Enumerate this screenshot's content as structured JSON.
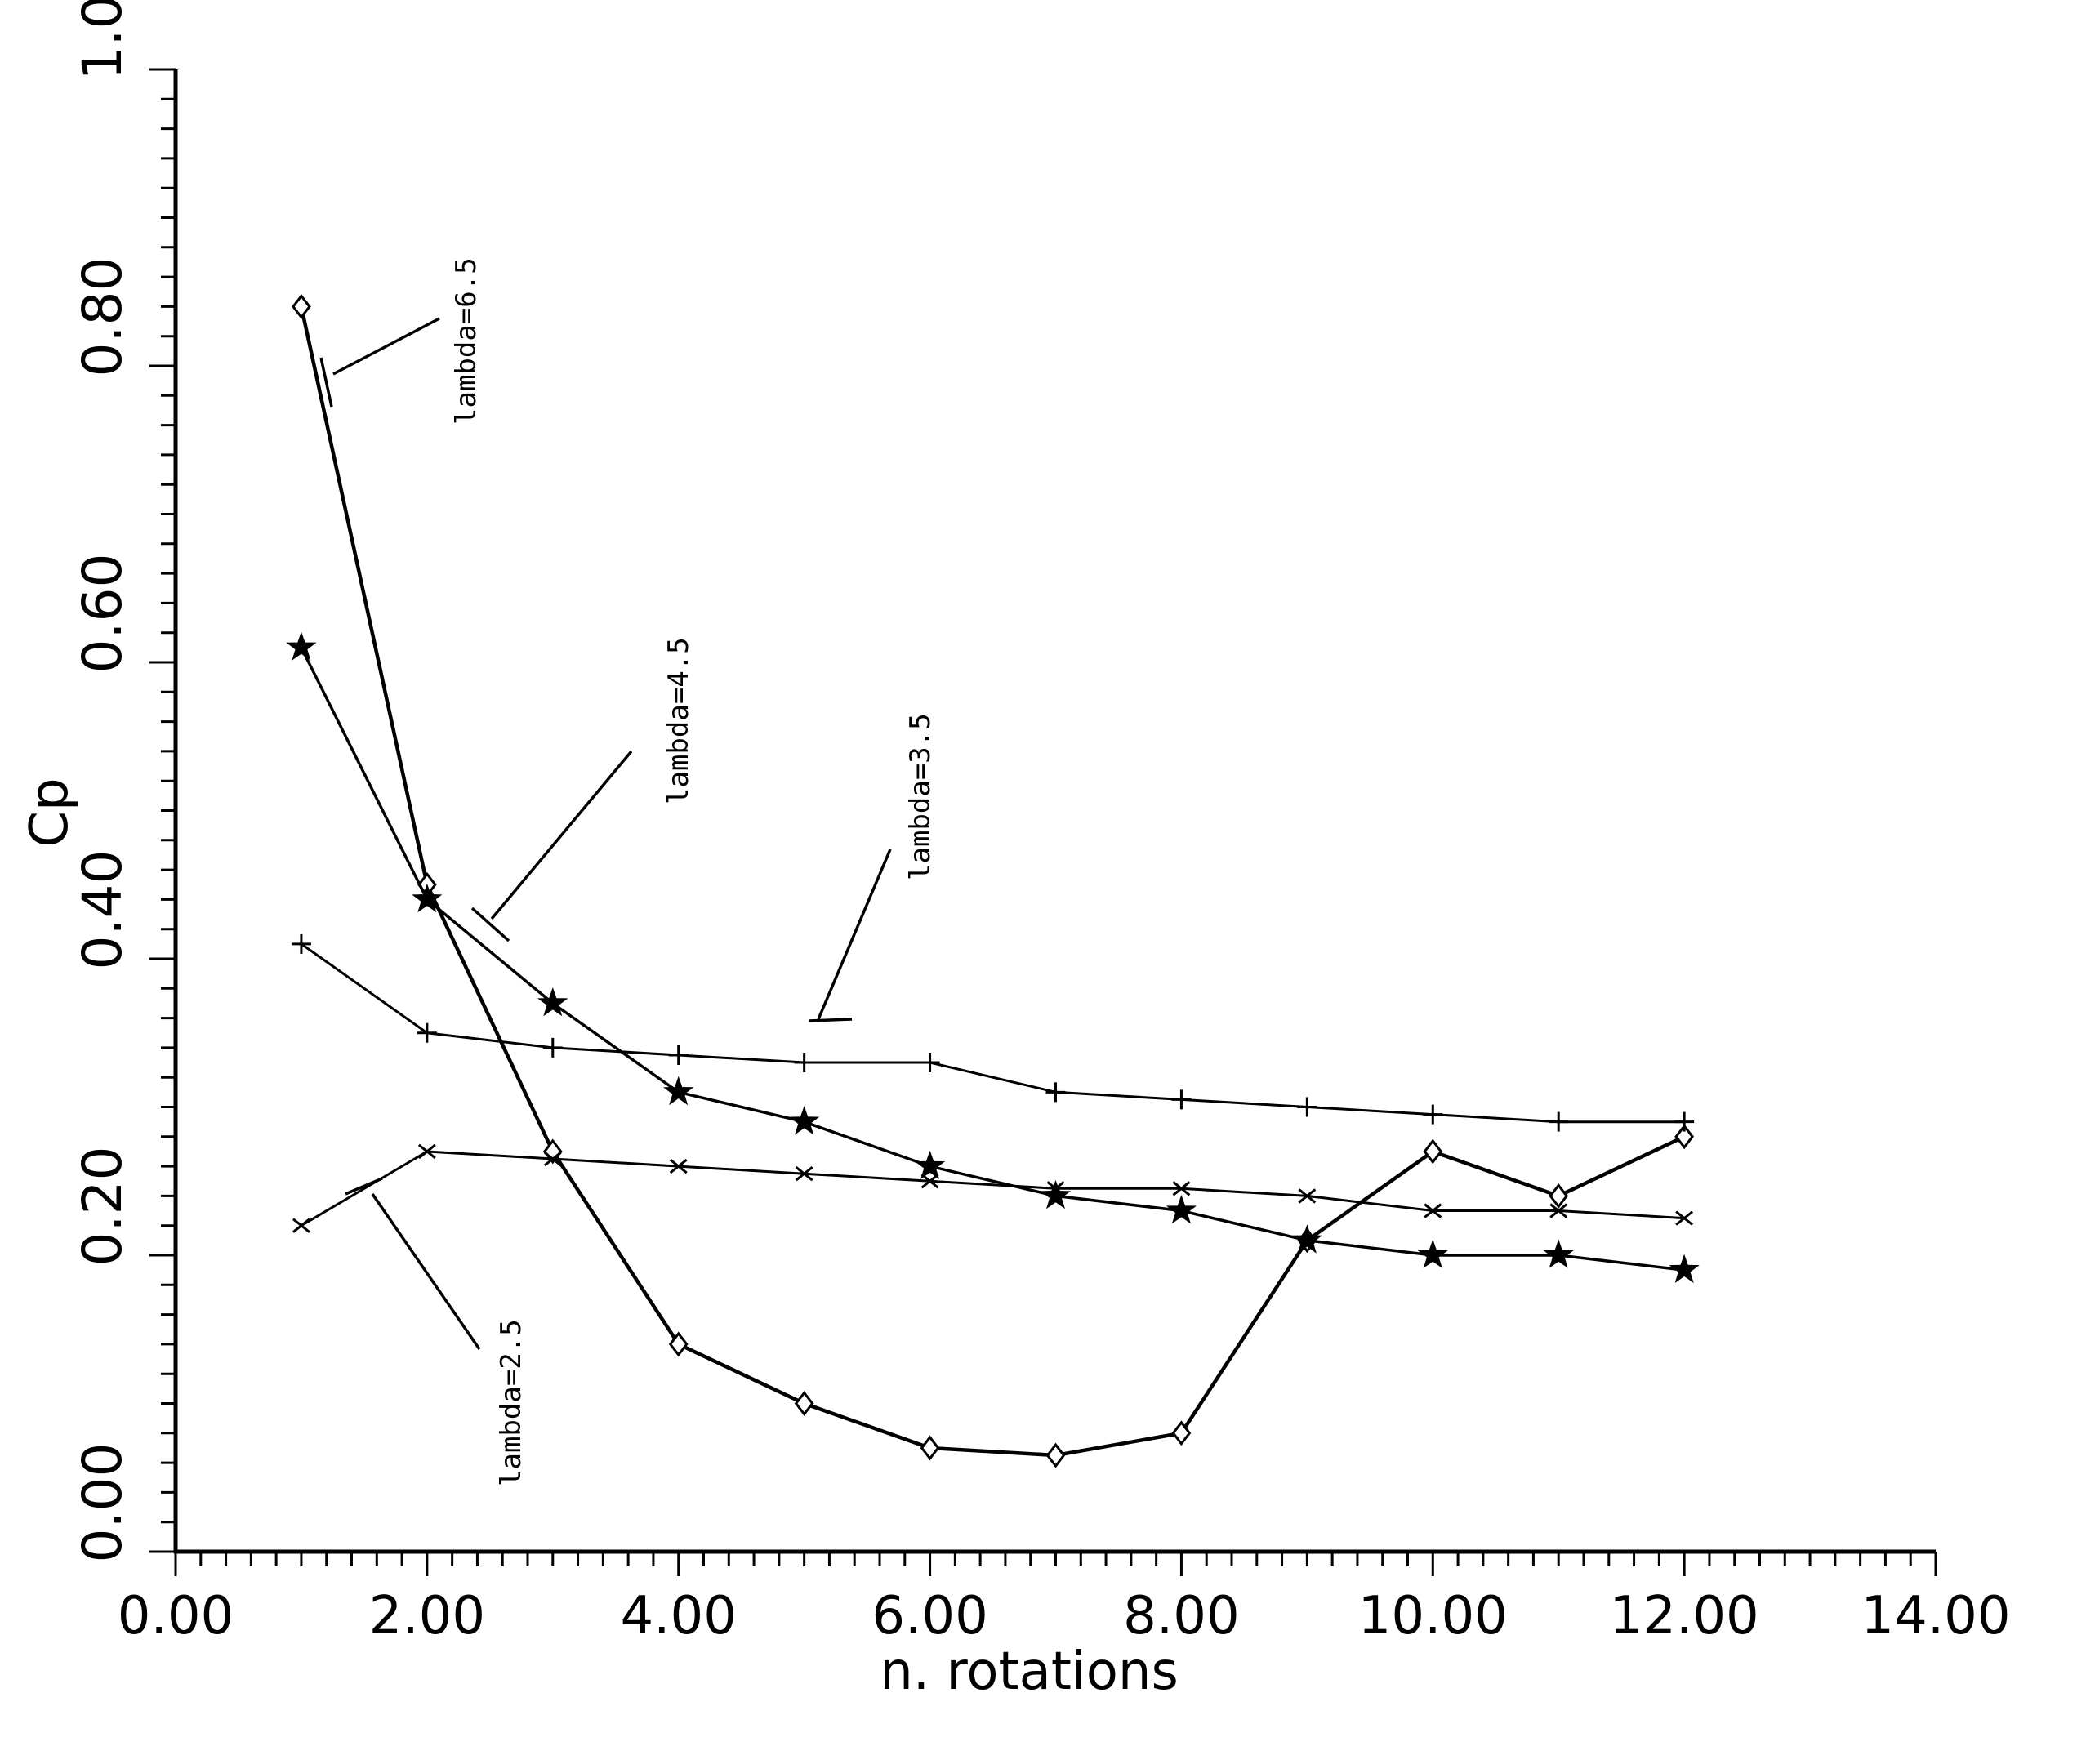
{
  "chart_data": {
    "type": "line",
    "title": "",
    "xlabel": "n. rotations",
    "ylabel": "Cp",
    "xlim": [
      0,
      14
    ],
    "ylim": [
      0,
      1
    ],
    "grid": false,
    "x_ticks": [
      "0.00",
      "2.00",
      "4.00",
      "6.00",
      "8.00",
      "10.00",
      "12.00",
      "14.00"
    ],
    "y_ticks": [
      "0.00",
      "0.20",
      "0.40",
      "0.60",
      "0.80",
      "1.00"
    ],
    "x": [
      1,
      2,
      3,
      4,
      5,
      6,
      7,
      8,
      9,
      10,
      11,
      12
    ],
    "series": [
      {
        "name": "lambda=6.5",
        "marker": "diamond",
        "values": [
          0.84,
          0.45,
          0.27,
          0.14,
          0.1,
          0.07,
          0.065,
          0.08,
          0.21,
          0.27,
          0.24,
          0.28
        ]
      },
      {
        "name": "lambda=4.5",
        "marker": "star",
        "values": [
          0.61,
          0.44,
          0.37,
          0.31,
          0.29,
          0.26,
          0.24,
          0.23,
          0.21,
          0.2,
          0.2,
          0.19
        ]
      },
      {
        "name": "lambda=3.5",
        "marker": "plus",
        "values": [
          0.41,
          0.35,
          0.34,
          0.335,
          0.33,
          0.33,
          0.31,
          0.305,
          0.3,
          0.295,
          0.29,
          0.29
        ]
      },
      {
        "name": "lambda=2.5",
        "marker": "x",
        "values": [
          0.22,
          0.27,
          0.265,
          0.26,
          0.255,
          0.25,
          0.245,
          0.245,
          0.24,
          0.23,
          0.23,
          0.225
        ]
      }
    ],
    "annotations": [
      "lambda=6.5",
      "lambda=4.5",
      "lambda=3.5",
      "lambda=2.5"
    ]
  }
}
